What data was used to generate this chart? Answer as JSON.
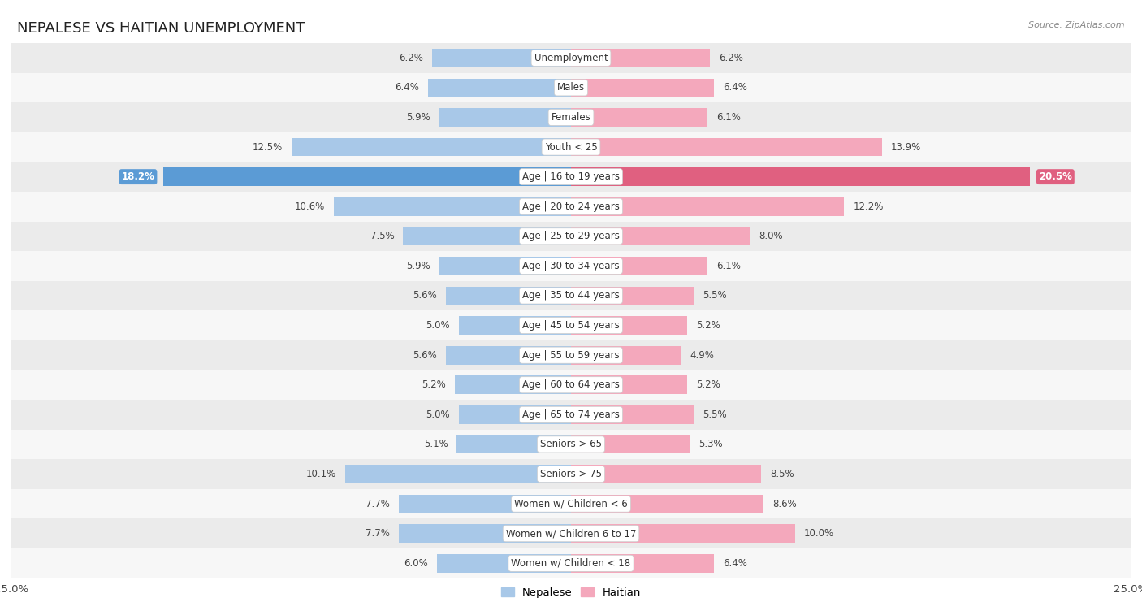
{
  "title": "NEPALESE VS HAITIAN UNEMPLOYMENT",
  "source": "Source: ZipAtlas.com",
  "categories": [
    "Unemployment",
    "Males",
    "Females",
    "Youth < 25",
    "Age | 16 to 19 years",
    "Age | 20 to 24 years",
    "Age | 25 to 29 years",
    "Age | 30 to 34 years",
    "Age | 35 to 44 years",
    "Age | 45 to 54 years",
    "Age | 55 to 59 years",
    "Age | 60 to 64 years",
    "Age | 65 to 74 years",
    "Seniors > 65",
    "Seniors > 75",
    "Women w/ Children < 6",
    "Women w/ Children 6 to 17",
    "Women w/ Children < 18"
  ],
  "nepalese": [
    6.2,
    6.4,
    5.9,
    12.5,
    18.2,
    10.6,
    7.5,
    5.9,
    5.6,
    5.0,
    5.6,
    5.2,
    5.0,
    5.1,
    10.1,
    7.7,
    7.7,
    6.0
  ],
  "haitian": [
    6.2,
    6.4,
    6.1,
    13.9,
    20.5,
    12.2,
    8.0,
    6.1,
    5.5,
    5.2,
    4.9,
    5.2,
    5.5,
    5.3,
    8.5,
    8.6,
    10.0,
    6.4
  ],
  "nepalese_color": "#a8c8e8",
  "haitian_color": "#f4a8bc",
  "highlight_nepalese_color": "#5b9bd5",
  "highlight_haitian_color": "#e06080",
  "highlight_row": 4,
  "bar_height": 0.62,
  "max_val": 25.0,
  "bg_color_even": "#ebebeb",
  "bg_color_odd": "#f7f7f7",
  "title_fontsize": 13,
  "value_fontsize": 8.5,
  "category_fontsize": 8.5
}
